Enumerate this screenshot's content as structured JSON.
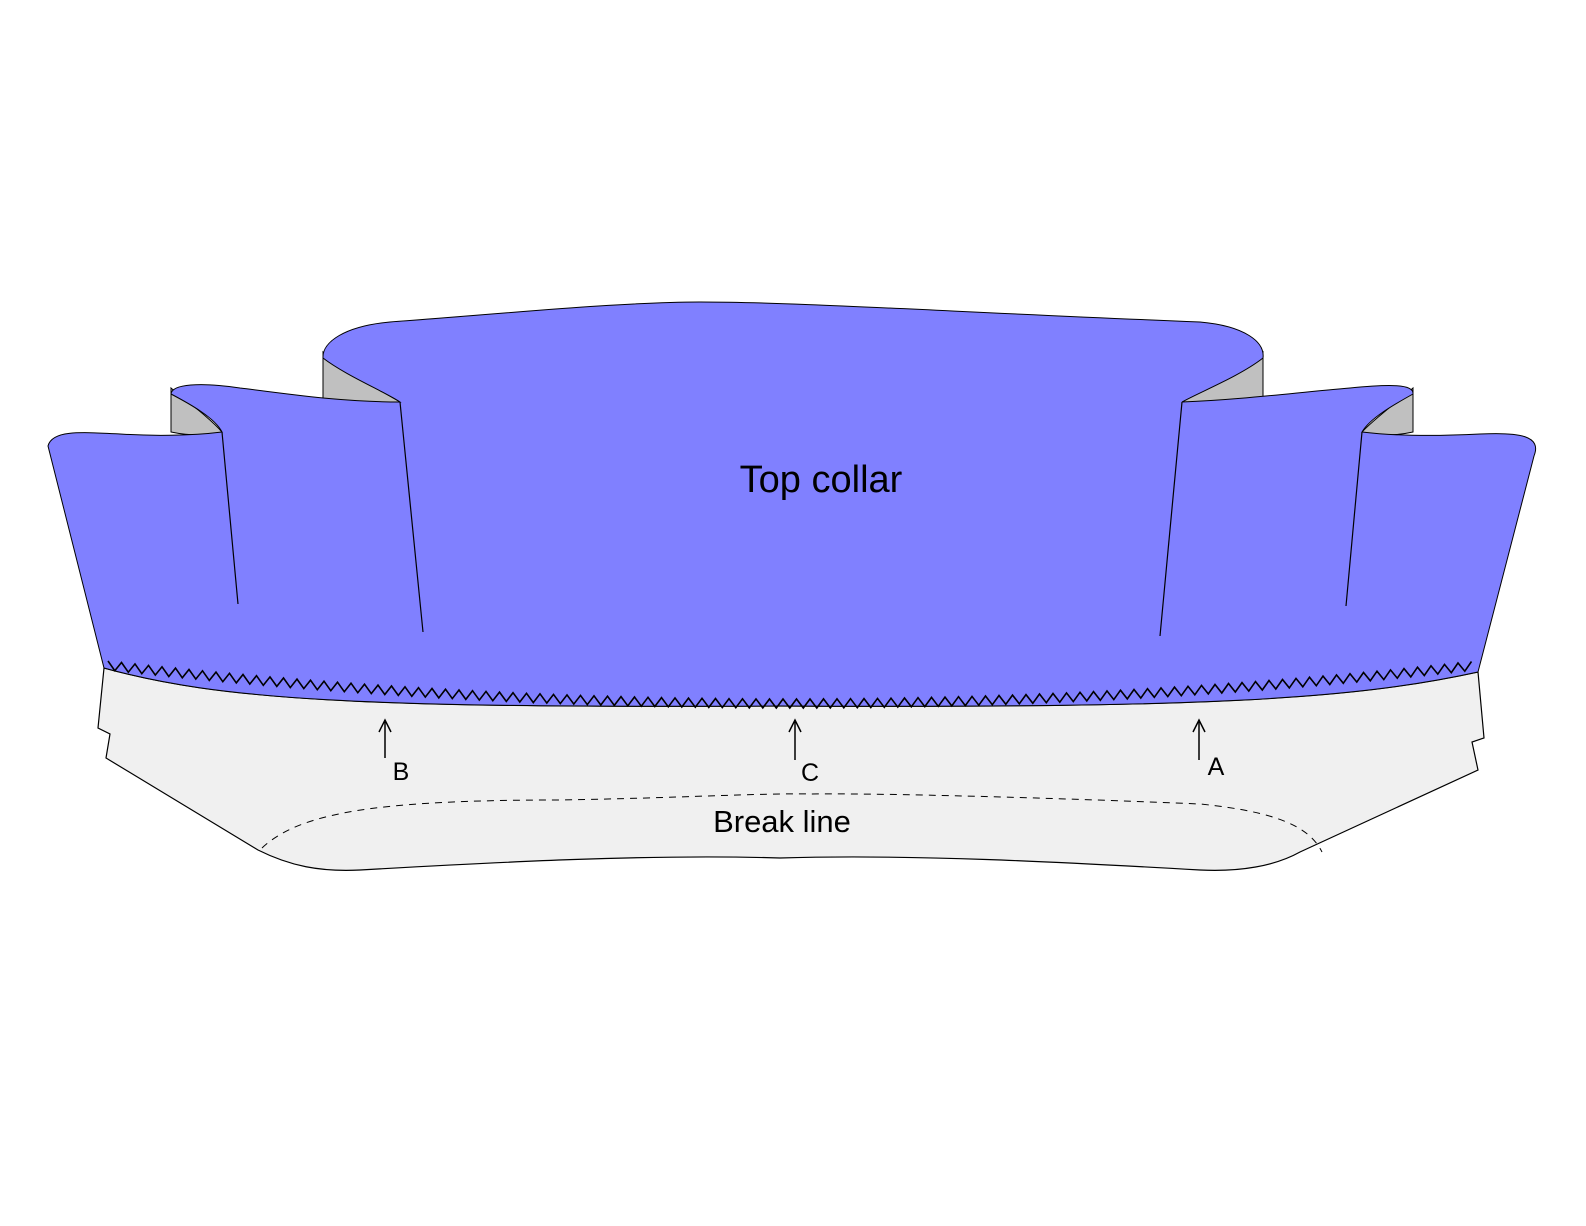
{
  "labels": {
    "top_collar": "Top collar",
    "break_line": "Break line",
    "mark_a": "A",
    "mark_b": "B",
    "mark_c": "C"
  },
  "colors": {
    "top_collar_fill": "#8080ff",
    "under_collar_fill": "#f0f0f0",
    "fold_underside_fill": "#c0c0c0",
    "outline": "#000000"
  }
}
